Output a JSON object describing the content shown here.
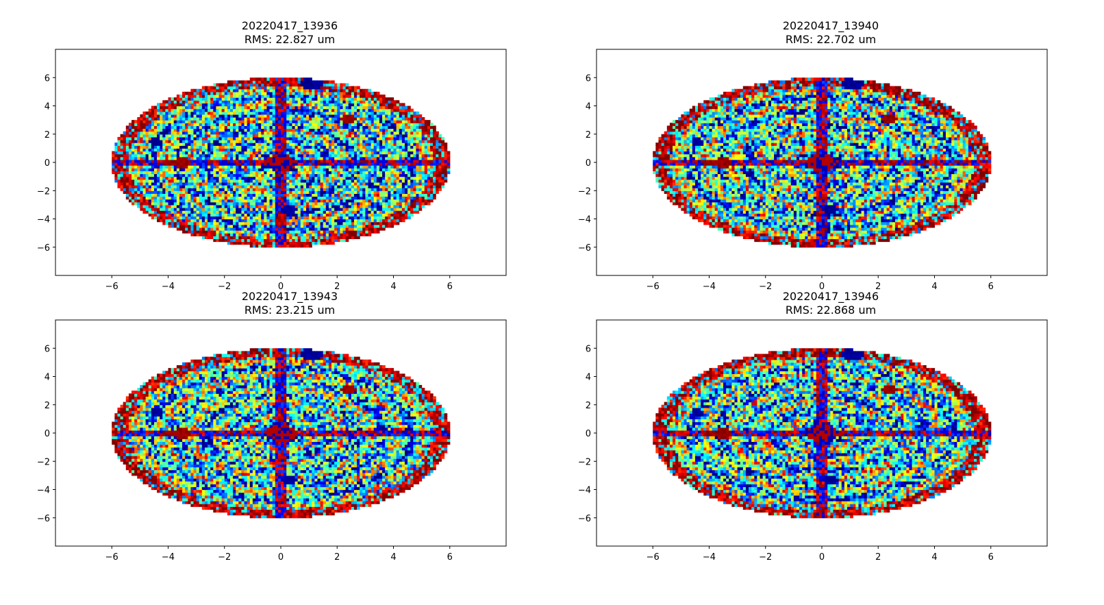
{
  "figure": {
    "panels": [
      {
        "title": "20220417_13936",
        "subtitle": "RMS: 22.827 um"
      },
      {
        "title": "20220417_13940",
        "subtitle": "RMS: 22.702 um"
      },
      {
        "title": "20220417_13943",
        "subtitle": "RMS: 23.215 um"
      },
      {
        "title": "20220417_13946",
        "subtitle": "RMS: 22.868 um"
      }
    ]
  },
  "chart_data": [
    {
      "type": "heatmap",
      "title": "20220417_13936",
      "subtitle": "RMS: 22.827 um",
      "xlabel": "",
      "ylabel": "",
      "xlim": [
        -8,
        8
      ],
      "ylim": [
        -8,
        8
      ],
      "xticks": [
        -6,
        -4,
        -2,
        0,
        2,
        4,
        6
      ],
      "yticks": [
        -6,
        -4,
        -2,
        0,
        2,
        4,
        6
      ],
      "colormap": "jet",
      "domain": {
        "shape": "ellipse",
        "center": [
          0,
          0
        ],
        "radius_x": 6,
        "radius_y": 6
      },
      "seed": 13936,
      "grid": false
    },
    {
      "type": "heatmap",
      "title": "20220417_13940",
      "subtitle": "RMS: 22.702 um",
      "xlabel": "",
      "ylabel": "",
      "xlim": [
        -8,
        8
      ],
      "ylim": [
        -8,
        8
      ],
      "xticks": [
        -6,
        -4,
        -2,
        0,
        2,
        4,
        6
      ],
      "yticks": [
        -6,
        -4,
        -2,
        0,
        2,
        4,
        6
      ],
      "colormap": "jet",
      "domain": {
        "shape": "ellipse",
        "center": [
          0,
          0
        ],
        "radius_x": 6,
        "radius_y": 6
      },
      "seed": 13940,
      "grid": false
    },
    {
      "type": "heatmap",
      "title": "20220417_13943",
      "subtitle": "RMS: 23.215 um",
      "xlabel": "",
      "ylabel": "",
      "xlim": [
        -8,
        8
      ],
      "ylim": [
        -8,
        8
      ],
      "xticks": [
        -6,
        -4,
        -2,
        0,
        2,
        4,
        6
      ],
      "yticks": [
        -6,
        -4,
        -2,
        0,
        2,
        4,
        6
      ],
      "colormap": "jet",
      "domain": {
        "shape": "ellipse",
        "center": [
          0,
          0
        ],
        "radius_x": 6,
        "radius_y": 6
      },
      "seed": 13943,
      "grid": false
    },
    {
      "type": "heatmap",
      "title": "20220417_13946",
      "subtitle": "RMS: 22.868 um",
      "xlabel": "",
      "ylabel": "",
      "xlim": [
        -8,
        8
      ],
      "ylim": [
        -8,
        8
      ],
      "xticks": [
        -6,
        -4,
        -2,
        0,
        2,
        4,
        6
      ],
      "yticks": [
        -6,
        -4,
        -2,
        0,
        2,
        4,
        6
      ],
      "colormap": "jet",
      "domain": {
        "shape": "ellipse",
        "center": [
          0,
          0
        ],
        "radius_x": 6,
        "radius_y": 6
      },
      "seed": 13946,
      "grid": false
    }
  ]
}
